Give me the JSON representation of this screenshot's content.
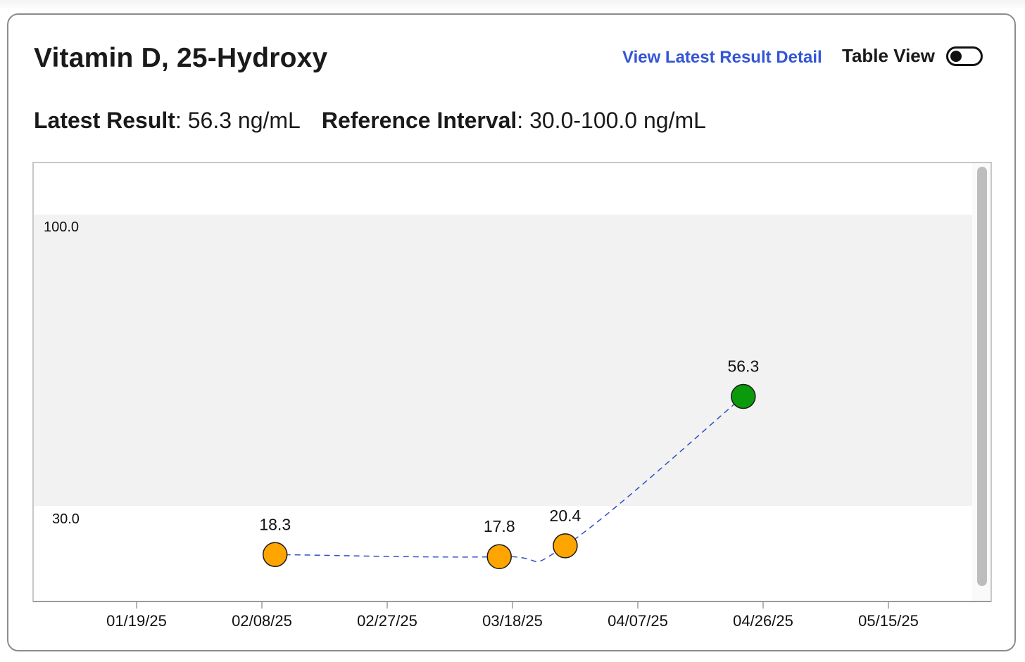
{
  "card": {
    "title": "Vitamin D, 25-Hydroxy",
    "detail_link": "View Latest Result Detail",
    "table_view_label": "Table View",
    "table_view_on": false,
    "latest_result_label": "Latest Result",
    "latest_result_value": "56.3 ng/mL",
    "reference_label": "Reference Interval",
    "reference_value": "30.0-100.0 ng/mL"
  },
  "colors": {
    "in_range": "#0b9a0b",
    "out_of_range": "#ffa500",
    "line": "#2f4fc4",
    "reference_band": "#f2f2f2",
    "link": "#3356d6"
  },
  "chart_data": {
    "type": "scatter",
    "title": "",
    "xlabel": "",
    "ylabel": "",
    "x_ticks": [
      "01/19/25",
      "02/08/25",
      "02/27/25",
      "03/18/25",
      "04/07/25",
      "04/26/25",
      "05/15/25"
    ],
    "reference_band": {
      "low": 30.0,
      "high": 100.0,
      "low_label": "30.0",
      "high_label": "100.0"
    },
    "ylim": [
      7,
      112
    ],
    "points": [
      {
        "x": "2025-02-09",
        "y": 18.3,
        "label": "18.3",
        "status": "low"
      },
      {
        "x": "2025-03-15",
        "y": 17.8,
        "label": "17.8",
        "status": "low"
      },
      {
        "x": "2025-03-25",
        "y": 20.4,
        "label": "20.4",
        "status": "low"
      },
      {
        "x": "2025-04-21",
        "y": 56.3,
        "label": "56.3",
        "status": "normal"
      }
    ],
    "connector": "dashed",
    "grid": false
  }
}
